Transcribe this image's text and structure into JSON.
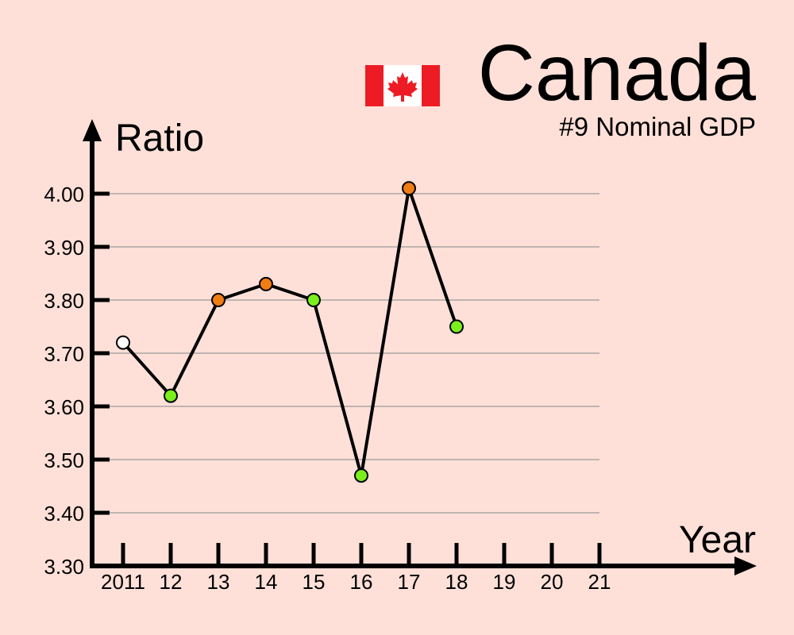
{
  "header": {
    "country": "Canada",
    "subtitle": "#9 Nominal GDP",
    "flag_icon": "canada-flag-icon"
  },
  "colors": {
    "background": "#ffe0d8",
    "axis": "#000000",
    "grid": "#999999",
    "line": "#000000",
    "point_up": "#f07c14",
    "point_down": "#7bef1c",
    "point_first": "#ffffff",
    "flag_red": "#ed1c24"
  },
  "chart_data": {
    "type": "line",
    "ylabel": "Ratio",
    "xlabel": "Year",
    "ylim": [
      3.3,
      4.0
    ],
    "yticks": [
      "3.30",
      "3.40",
      "3.50",
      "3.60",
      "3.70",
      "3.80",
      "3.90",
      "4.00"
    ],
    "xtick_labels": [
      "2011",
      "12",
      "13",
      "14",
      "15",
      "16",
      "17",
      "18",
      "19",
      "20",
      "21"
    ],
    "grid": true,
    "series": [
      {
        "x": [
          2011,
          2012,
          2013,
          2014,
          2015,
          2016,
          2017,
          2018
        ],
        "values": [
          3.72,
          3.62,
          3.8,
          3.83,
          3.8,
          3.47,
          4.01,
          3.75
        ],
        "point_colors": [
          "white",
          "green",
          "orange",
          "orange",
          "green",
          "green",
          "orange",
          "green"
        ]
      }
    ]
  }
}
